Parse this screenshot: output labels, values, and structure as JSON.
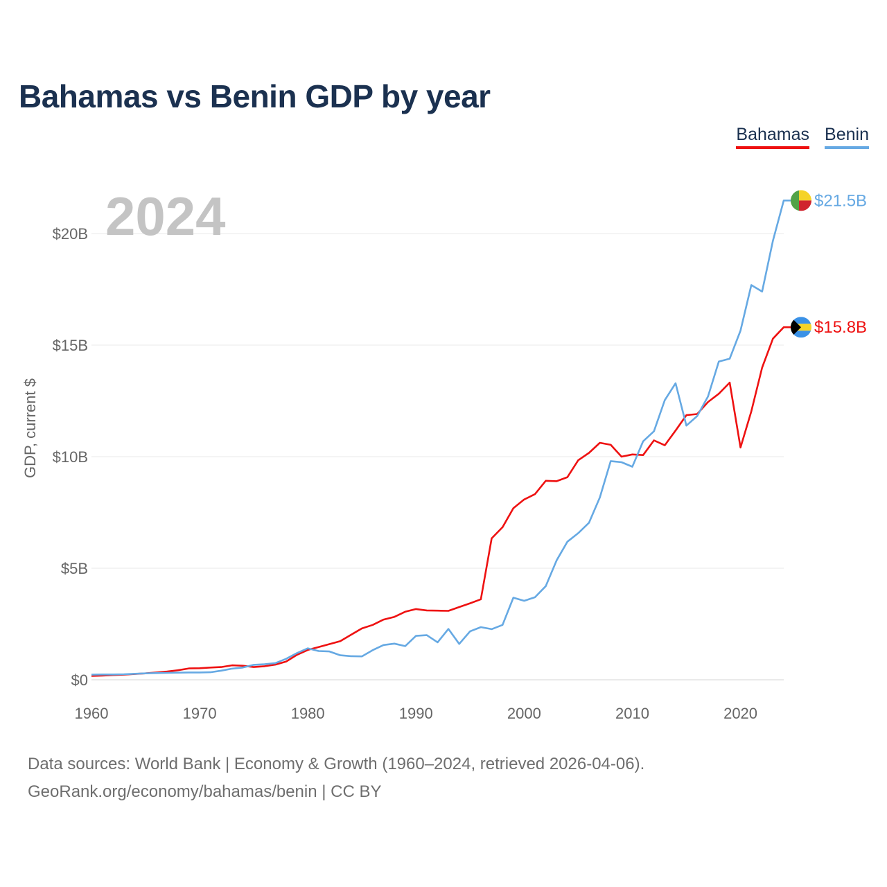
{
  "title": "Bahamas vs Benin GDP by year",
  "footer": {
    "line1": "Data sources: World Bank | Economy & Growth (1960–2024, retrieved 2026-04-06).",
    "line2": "GeoRank.org/economy/bahamas/benin | CC BY"
  },
  "chart_data": {
    "type": "line",
    "title": "Bahamas vs Benin GDP by year",
    "ylabel": "GDP, current $",
    "xlabel": "",
    "current_year_label": "2024",
    "xlim": [
      1960,
      2024
    ],
    "ylim": [
      0,
      22
    ],
    "y_unit": "billion USD",
    "yticks": [
      0,
      5,
      10,
      15,
      20
    ],
    "ytick_labels": [
      "$0",
      "$5B",
      "$10B",
      "$15B",
      "$20B"
    ],
    "xticks": [
      1960,
      1970,
      1980,
      1990,
      2000,
      2010,
      2020
    ],
    "xtick_labels": [
      "1960",
      "1970",
      "1980",
      "1990",
      "2000",
      "2010",
      "2020"
    ],
    "grid": "horizontal",
    "legend_position": "top-right",
    "series": [
      {
        "name": "Bahamas",
        "color": "#ee1111",
        "end_label": "$15.8B",
        "flag": [
          "#000000",
          "#f5d327",
          "#3a91e6"
        ],
        "x": [
          1960,
          1961,
          1962,
          1963,
          1964,
          1965,
          1966,
          1967,
          1968,
          1969,
          1970,
          1971,
          1972,
          1973,
          1974,
          1975,
          1976,
          1977,
          1978,
          1979,
          1980,
          1981,
          1982,
          1983,
          1984,
          1985,
          1986,
          1987,
          1988,
          1989,
          1990,
          1991,
          1992,
          1993,
          1994,
          1995,
          1996,
          1997,
          1998,
          1999,
          2000,
          2001,
          2002,
          2003,
          2004,
          2005,
          2006,
          2007,
          2008,
          2009,
          2010,
          2011,
          2012,
          2013,
          2014,
          2015,
          2016,
          2017,
          2018,
          2019,
          2020,
          2021,
          2022,
          2023,
          2024
        ],
        "values": [
          0.17,
          0.19,
          0.21,
          0.23,
          0.26,
          0.29,
          0.33,
          0.37,
          0.43,
          0.51,
          0.52,
          0.55,
          0.57,
          0.65,
          0.63,
          0.57,
          0.61,
          0.68,
          0.82,
          1.12,
          1.34,
          1.47,
          1.6,
          1.73,
          2.02,
          2.3,
          2.46,
          2.7,
          2.82,
          3.05,
          3.17,
          3.11,
          3.1,
          3.09,
          3.26,
          3.43,
          3.61,
          6.34,
          6.84,
          7.69,
          8.08,
          8.32,
          8.92,
          8.9,
          9.08,
          9.84,
          10.17,
          10.62,
          10.53,
          10.0,
          10.1,
          10.07,
          10.73,
          10.51,
          11.17,
          11.86,
          11.91,
          12.45,
          12.82,
          13.32,
          10.41,
          12.03,
          13.99,
          15.29,
          15.8
        ]
      },
      {
        "name": "Benin",
        "color": "#66a9e3",
        "end_label": "$21.5B",
        "flag": [
          "#52a347",
          "#f5d327",
          "#d0242e"
        ],
        "x": [
          1960,
          1961,
          1962,
          1963,
          1964,
          1965,
          1966,
          1967,
          1968,
          1969,
          1970,
          1971,
          1972,
          1973,
          1974,
          1975,
          1976,
          1977,
          1978,
          1979,
          1980,
          1981,
          1982,
          1983,
          1984,
          1985,
          1986,
          1987,
          1988,
          1989,
          1990,
          1991,
          1992,
          1993,
          1994,
          1995,
          1996,
          1997,
          1998,
          1999,
          2000,
          2001,
          2002,
          2003,
          2004,
          2005,
          2006,
          2007,
          2008,
          2009,
          2010,
          2011,
          2012,
          2013,
          2014,
          2015,
          2016,
          2017,
          2018,
          2019,
          2020,
          2021,
          2022,
          2023,
          2024
        ],
        "values": [
          0.23,
          0.24,
          0.24,
          0.25,
          0.27,
          0.29,
          0.3,
          0.31,
          0.32,
          0.33,
          0.33,
          0.34,
          0.41,
          0.5,
          0.55,
          0.67,
          0.7,
          0.75,
          0.94,
          1.2,
          1.41,
          1.29,
          1.27,
          1.1,
          1.06,
          1.05,
          1.33,
          1.56,
          1.62,
          1.51,
          1.97,
          2.0,
          1.68,
          2.28,
          1.61,
          2.17,
          2.36,
          2.27,
          2.46,
          3.68,
          3.54,
          3.7,
          4.2,
          5.35,
          6.19,
          6.57,
          7.04,
          8.17,
          9.8,
          9.75,
          9.55,
          10.69,
          11.14,
          12.53,
          13.29,
          11.39,
          11.82,
          12.7,
          14.26,
          14.39,
          15.65,
          17.69,
          17.4,
          19.68,
          21.48
        ]
      }
    ]
  }
}
